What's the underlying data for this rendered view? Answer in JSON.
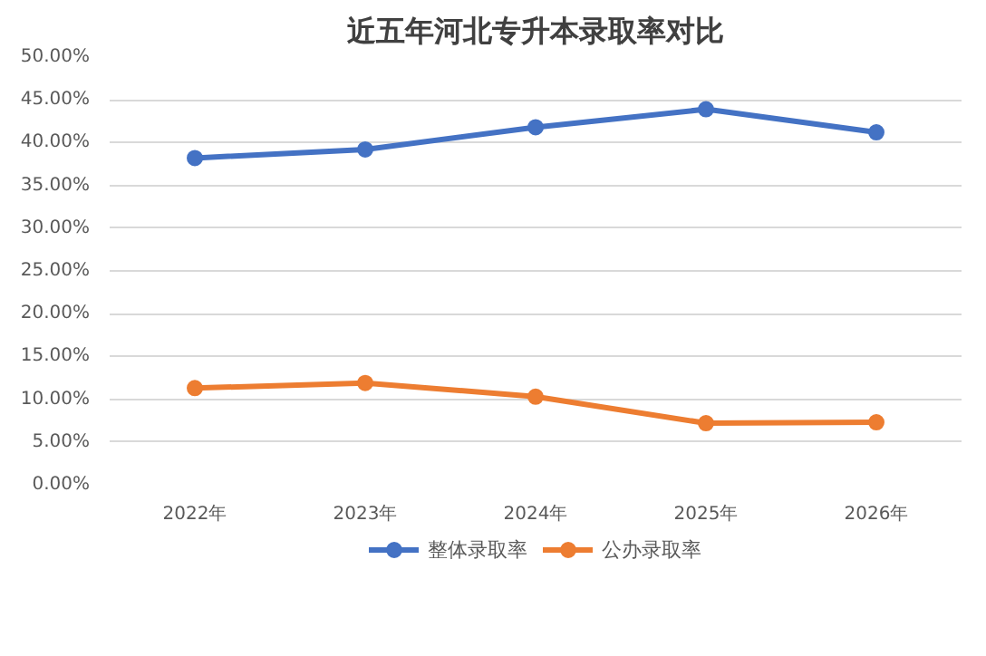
{
  "chart_data": {
    "type": "line",
    "title": "近五年河北专升本录取率对比",
    "categories": [
      "2022年",
      "2023年",
      "2024年",
      "2025年",
      "2026年"
    ],
    "series": [
      {
        "name": "整体录取率",
        "color": "#4472c4",
        "values": [
          38.2,
          39.2,
          41.8,
          43.9,
          41.2
        ]
      },
      {
        "name": "公办录取率",
        "color": "#ed7d31",
        "values": [
          11.3,
          11.9,
          10.3,
          7.2,
          7.3
        ]
      }
    ],
    "ylim": [
      0,
      50
    ],
    "yticks": [
      {
        "value": 0,
        "label": "0.00%"
      },
      {
        "value": 5,
        "label": "5.00%"
      },
      {
        "value": 10,
        "label": "10.00%"
      },
      {
        "value": 15,
        "label": "15.00%"
      },
      {
        "value": 20,
        "label": "20.00%"
      },
      {
        "value": 25,
        "label": "25.00%"
      },
      {
        "value": 30,
        "label": "30.00%"
      },
      {
        "value": 35,
        "label": "35.00%"
      },
      {
        "value": 40,
        "label": "40.00%"
      },
      {
        "value": 45,
        "label": "45.00%"
      },
      {
        "value": 50,
        "label": "50.00%"
      }
    ],
    "grid": "y",
    "legend": "bottom",
    "marker": "circle",
    "line_style": "solid"
  }
}
